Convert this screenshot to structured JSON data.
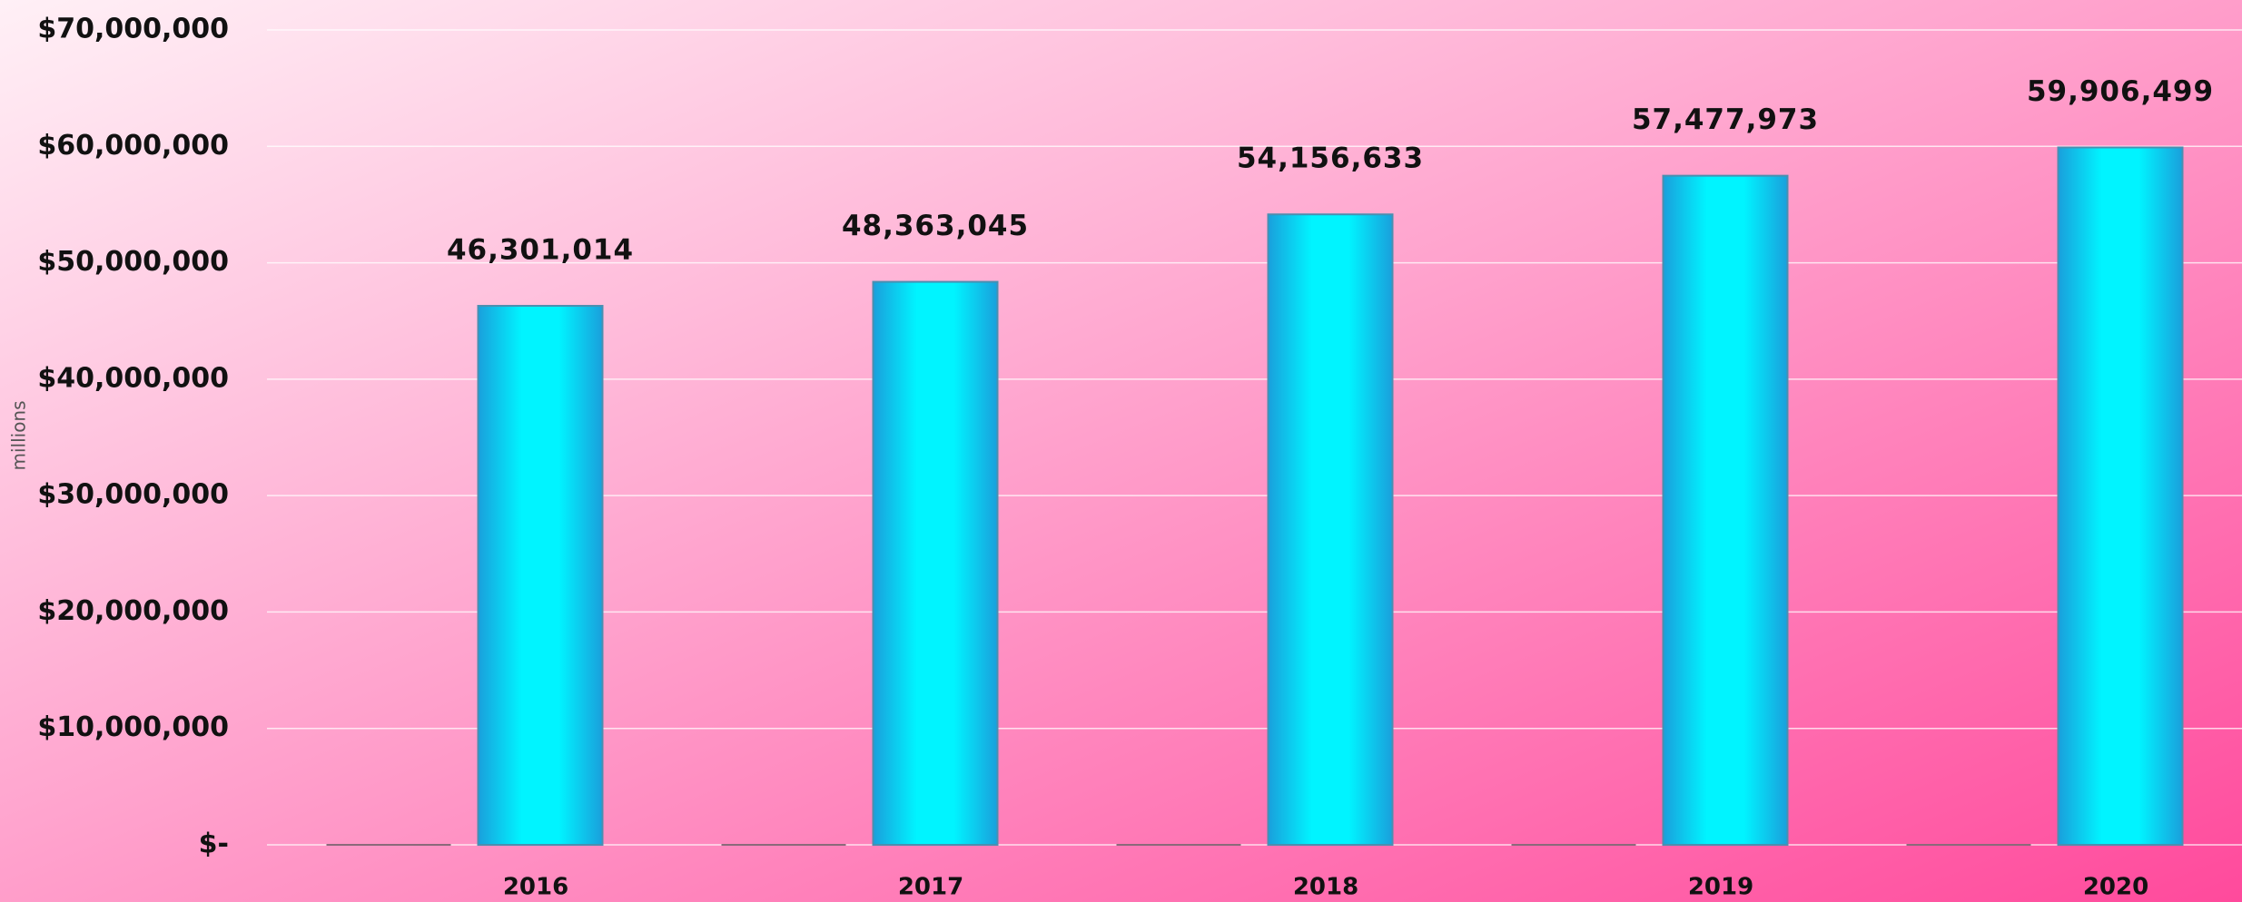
{
  "chart_data": {
    "type": "bar",
    "y_label": "millions",
    "categories": [
      "2016",
      "2017",
      "2018",
      "2019",
      "2020"
    ],
    "series": [
      {
        "color": "#8a6a7a",
        "values": [
          0,
          0,
          0,
          0,
          0
        ]
      },
      {
        "color": "#00e5f0",
        "values": [
          46301014,
          48363045,
          54156633,
          57477973,
          59906499
        ],
        "value_labels": [
          "46,301,014",
          "48,363,045",
          "54,156,633",
          "57,477,973",
          "59,906,499"
        ]
      }
    ],
    "ylim": [
      0,
      70000000
    ],
    "yticks": [
      {
        "value": 0,
        "label": "$-"
      },
      {
        "value": 10000000,
        "label": "$10,000,000"
      },
      {
        "value": 20000000,
        "label": "$20,000,000"
      },
      {
        "value": 30000000,
        "label": "$30,000,000"
      },
      {
        "value": 40000000,
        "label": "$40,000,000"
      },
      {
        "value": 50000000,
        "label": "$50,000,000"
      },
      {
        "value": 60000000,
        "label": "$60,000,000"
      },
      {
        "value": 70000000,
        "label": "$70,000,000"
      }
    ],
    "grid": true
  }
}
